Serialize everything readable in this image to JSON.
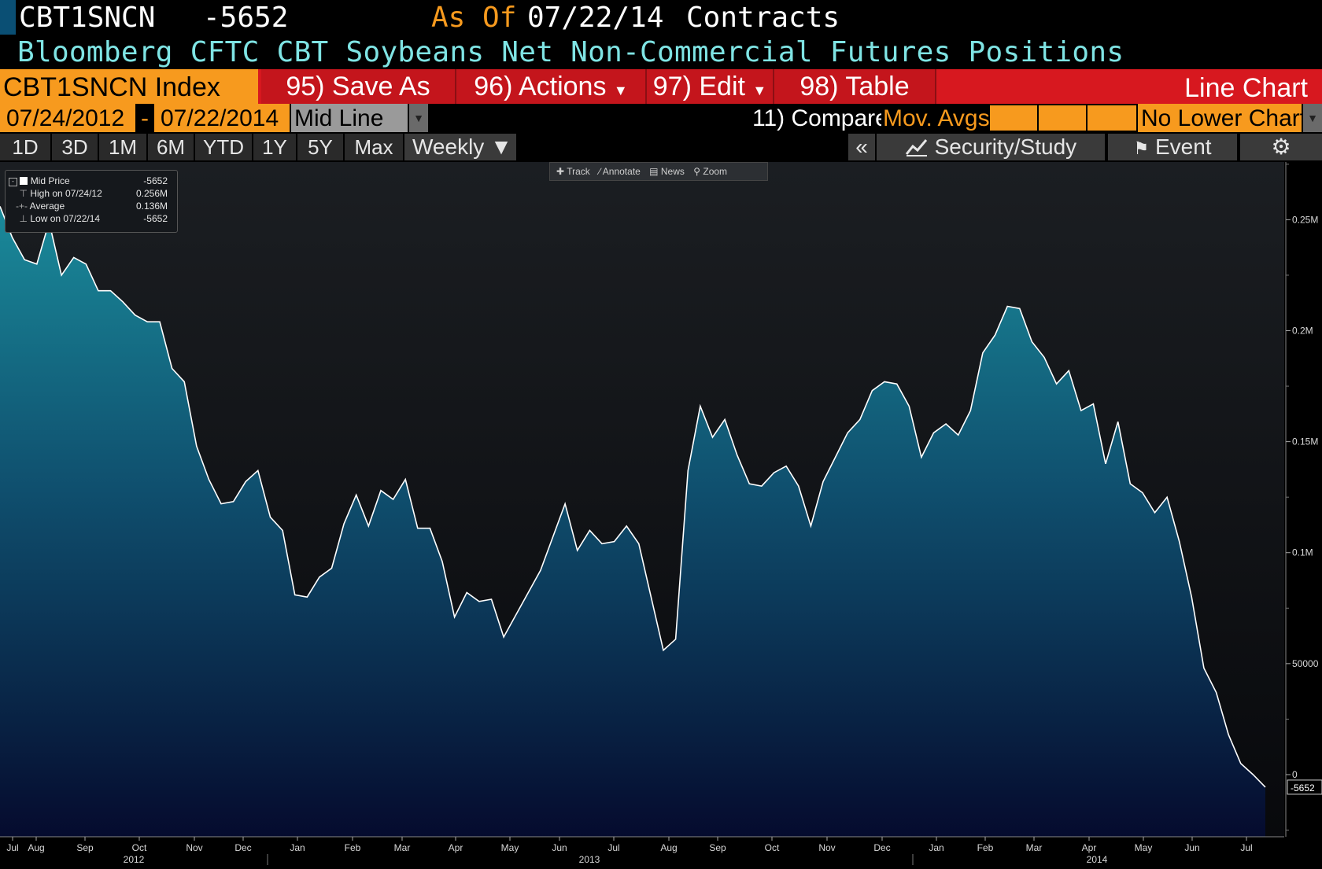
{
  "header": {
    "ticker": "CBT1SNCN",
    "last_value": "-5652",
    "as_of_label": "As Of",
    "as_of_date": "07/22/14",
    "units": "Contracts",
    "description": "Bloomberg CFTC CBT Soybeans Net Non-Commercial Futures Positions"
  },
  "toolbar": {
    "security": "CBT1SNCN Index",
    "save_as": "95) Save As",
    "actions": "96) Actions",
    "edit": "97) Edit",
    "table": "98) Table",
    "chart_type": "Line Chart"
  },
  "range_bar": {
    "start_date": "07/24/2012",
    "separator": "-",
    "end_date": "07/22/2014",
    "price_type": "Mid Line",
    "compare": "11) Compare",
    "mov_avgs": "Mov. Avgs",
    "lower_chart": "No Lower Chart"
  },
  "period_bar": {
    "periods": [
      "1D",
      "3D",
      "1M",
      "6M",
      "YTD",
      "1Y",
      "5Y",
      "Max"
    ],
    "frequency": "Weekly ▼",
    "collapse": "«",
    "security_study": "Security/Study",
    "event": "Event"
  },
  "chart_tools": [
    "Track",
    "Annotate",
    "News",
    "Zoom"
  ],
  "legend": {
    "rows": [
      {
        "label": "Mid Price",
        "value": "-5652"
      },
      {
        "label": "High on 07/24/12",
        "value": "0.256M"
      },
      {
        "label": "Average",
        "value": "0.136M"
      },
      {
        "label": "Low on 07/22/14",
        "value": "-5652"
      }
    ]
  },
  "colors": {
    "accent_orange": "#f79a1e",
    "toolbar_red": "#d7181f",
    "title_cyan": "#7fe4e4",
    "line": "#ffffff",
    "area_top": "#1a8a9a",
    "area_bottom": "#050b2e"
  },
  "chart_data": {
    "type": "area",
    "title": "",
    "xlabel": "",
    "ylabel": "",
    "ylim": [
      -28000,
      276000
    ],
    "y_ticks": [
      {
        "value": 250000,
        "label": "0.25M"
      },
      {
        "value": 200000,
        "label": "0.2M"
      },
      {
        "value": 150000,
        "label": "0.15M"
      },
      {
        "value": 100000,
        "label": "0.1M"
      },
      {
        "value": 50000,
        "label": "50000"
      },
      {
        "value": 0,
        "label": "0"
      }
    ],
    "last_value_label": "-5652",
    "x_month_ticks": [
      "Jul",
      "Aug",
      "Sep",
      "Oct",
      "Nov",
      "Dec",
      "Jan",
      "Feb",
      "Mar",
      "Apr",
      "May",
      "Jun",
      "Jul",
      "Aug",
      "Sep",
      "Oct",
      "Nov",
      "Dec",
      "Jan",
      "Feb",
      "Mar",
      "Apr",
      "May",
      "Jun",
      "Jul"
    ],
    "x_year_labels": [
      "2012",
      "2013",
      "2014"
    ],
    "series": [
      {
        "values": [
          256000,
          242000,
          232000,
          230000,
          249000,
          225000,
          233000,
          230000,
          218000,
          218000,
          213000,
          207000,
          204000,
          204000,
          183000,
          177000,
          148000,
          133000,
          122000,
          123000,
          132000,
          137000,
          116000,
          110000,
          81000,
          80000,
          89000,
          93000,
          113000,
          126000,
          112000,
          128000,
          124000,
          133000,
          111000,
          111000,
          96000,
          71000,
          82000,
          78000,
          79000,
          62000,
          72000,
          82000,
          92000,
          107000,
          122000,
          101000,
          110000,
          104000,
          105000,
          112000,
          104000,
          80000,
          56000,
          61000,
          137000,
          166000,
          152000,
          160000,
          144000,
          131000,
          130000,
          136000,
          139000,
          130000,
          112000,
          132000,
          143000,
          154000,
          160000,
          173000,
          177000,
          176000,
          166000,
          143000,
          154000,
          158000,
          153000,
          164000,
          190000,
          198000,
          211000,
          210000,
          195000,
          188000,
          176000,
          182000,
          164000,
          167000,
          140000,
          159000,
          131000,
          127000,
          118000,
          125000,
          105000,
          80000,
          48000,
          37000,
          18000,
          5000,
          0,
          -5652
        ]
      }
    ]
  }
}
